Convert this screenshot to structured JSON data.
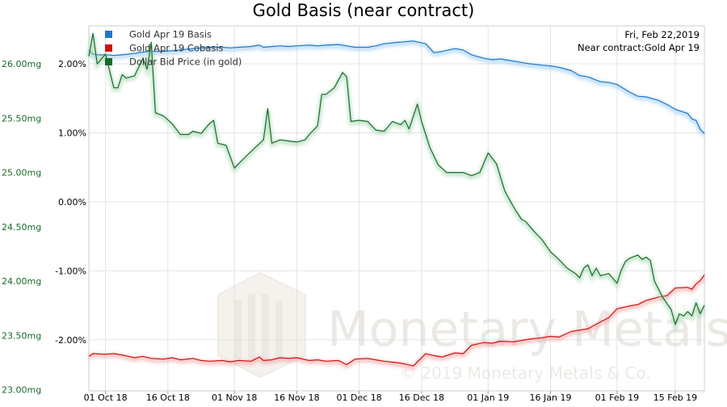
{
  "chart_data": {
    "type": "line",
    "title": "Gold Basis (near contract)",
    "info": {
      "date": "Fri, Feb 22,2019",
      "contract": "Near contract:Gold Apr 19"
    },
    "watermark": {
      "brand": "Monetary Metals",
      "registered": "®",
      "copyright": "© 2019 Monetary Metals & Co."
    },
    "legend": {
      "placement": "top-left",
      "entries": [
        {
          "name": "Gold Apr 19 Basis",
          "color": "#1f77c8"
        },
        {
          "name": "Gold Apr 19 Cobasis",
          "color": "#cc1111"
        },
        {
          "name": "Dollar Bid Price (in gold)",
          "color": "#1a6b2a"
        }
      ]
    },
    "x_ticks": [
      "01 Oct 18",
      "16 Oct 18",
      "01 Nov 18",
      "16 Nov 18",
      "01 Dec 18",
      "16 Dec 18",
      "01 Jan 19",
      "16 Jan 19",
      "01 Feb 19",
      "15 Feb 19"
    ],
    "x_range": [
      "2018-09-27",
      "2019-02-22"
    ],
    "y_left": {
      "ticks": [
        "23.00mg",
        "23.50mg",
        "24.00mg",
        "24.50mg",
        "25.00mg",
        "25.50mg",
        "26.00mg"
      ],
      "range": [
        22.99,
        26.35
      ],
      "color": "#1a6b2a"
    },
    "y_right": {
      "ticks": [
        "-2.00%",
        "-1.00%",
        "0.00%",
        "1.00%",
        "2.00%"
      ],
      "range": [
        -2.74,
        2.55
      ],
      "color": "#000000"
    },
    "grid": true,
    "series": [
      {
        "name": "Gold Apr 19 Basis",
        "axis": "right",
        "color": "#1f77c8",
        "points": [
          [
            "2018-09-27",
            2.2
          ],
          [
            "2018-09-28",
            2.14
          ],
          [
            "2018-09-29",
            2.13
          ],
          [
            "2018-10-01",
            2.13
          ],
          [
            "2018-10-03",
            2.12
          ],
          [
            "2018-10-05",
            2.13
          ],
          [
            "2018-10-08",
            2.15
          ],
          [
            "2018-10-10",
            2.17
          ],
          [
            "2018-10-12",
            2.18
          ],
          [
            "2018-10-15",
            2.18
          ],
          [
            "2018-10-17",
            2.19
          ],
          [
            "2018-10-19",
            2.2
          ],
          [
            "2018-10-22",
            2.22
          ],
          [
            "2018-10-24",
            2.23
          ],
          [
            "2018-10-26",
            2.24
          ],
          [
            "2018-10-29",
            2.24
          ],
          [
            "2018-10-31",
            2.23
          ],
          [
            "2018-11-02",
            2.24
          ],
          [
            "2018-11-05",
            2.25
          ],
          [
            "2018-11-07",
            2.27
          ],
          [
            "2018-11-08",
            2.24
          ],
          [
            "2018-11-10",
            2.25
          ],
          [
            "2018-11-12",
            2.26
          ],
          [
            "2018-11-14",
            2.25
          ],
          [
            "2018-11-16",
            2.26
          ],
          [
            "2018-11-19",
            2.27
          ],
          [
            "2018-11-21",
            2.26
          ],
          [
            "2018-11-23",
            2.27
          ],
          [
            "2018-11-26",
            2.28
          ],
          [
            "2018-11-28",
            2.26
          ],
          [
            "2018-11-30",
            2.24
          ],
          [
            "2018-12-03",
            2.24
          ],
          [
            "2018-12-05",
            2.26
          ],
          [
            "2018-12-07",
            2.29
          ],
          [
            "2018-12-10",
            2.31
          ],
          [
            "2018-12-12",
            2.32
          ],
          [
            "2018-12-14",
            2.33
          ],
          [
            "2018-12-17",
            2.29
          ],
          [
            "2018-12-19",
            2.16
          ],
          [
            "2018-12-21",
            2.18
          ],
          [
            "2018-12-24",
            2.22
          ],
          [
            "2018-12-26",
            2.2
          ],
          [
            "2018-12-28",
            2.13
          ],
          [
            "2018-12-31",
            2.08
          ],
          [
            "2019-01-02",
            2.06
          ],
          [
            "2019-01-04",
            2.07
          ],
          [
            "2019-01-07",
            2.04
          ],
          [
            "2019-01-09",
            2.02
          ],
          [
            "2019-01-11",
            2.0
          ],
          [
            "2019-01-14",
            1.98
          ],
          [
            "2019-01-16",
            1.97
          ],
          [
            "2019-01-18",
            1.95
          ],
          [
            "2019-01-21",
            1.9
          ],
          [
            "2019-01-23",
            1.83
          ],
          [
            "2019-01-25",
            1.81
          ],
          [
            "2019-01-28",
            1.74
          ],
          [
            "2019-01-30",
            1.73
          ],
          [
            "2019-02-01",
            1.7
          ],
          [
            "2019-02-04",
            1.59
          ],
          [
            "2019-02-06",
            1.53
          ],
          [
            "2019-02-08",
            1.52
          ],
          [
            "2019-02-11",
            1.47
          ],
          [
            "2019-02-13",
            1.41
          ],
          [
            "2019-02-15",
            1.34
          ],
          [
            "2019-02-18",
            1.28
          ],
          [
            "2019-02-19",
            1.2
          ],
          [
            "2019-02-20",
            1.18
          ],
          [
            "2019-02-21",
            1.05
          ],
          [
            "2019-02-22",
            0.99
          ]
        ]
      },
      {
        "name": "Gold Apr 19 Cobasis",
        "axis": "right",
        "color": "#cc1111",
        "points": [
          [
            "2018-09-27",
            -2.24
          ],
          [
            "2018-09-28",
            -2.2
          ],
          [
            "2018-10-01",
            -2.21
          ],
          [
            "2018-10-03",
            -2.2
          ],
          [
            "2018-10-05",
            -2.22
          ],
          [
            "2018-10-08",
            -2.26
          ],
          [
            "2018-10-10",
            -2.24
          ],
          [
            "2018-10-12",
            -2.27
          ],
          [
            "2018-10-15",
            -2.28
          ],
          [
            "2018-10-17",
            -2.26
          ],
          [
            "2018-10-19",
            -2.29
          ],
          [
            "2018-10-22",
            -2.27
          ],
          [
            "2018-10-24",
            -2.3
          ],
          [
            "2018-10-26",
            -2.31
          ],
          [
            "2018-10-29",
            -2.3
          ],
          [
            "2018-10-31",
            -2.32
          ],
          [
            "2018-11-02",
            -2.3
          ],
          [
            "2018-11-05",
            -2.31
          ],
          [
            "2018-11-07",
            -2.25
          ],
          [
            "2018-11-08",
            -2.3
          ],
          [
            "2018-11-10",
            -2.29
          ],
          [
            "2018-11-12",
            -2.26
          ],
          [
            "2018-11-14",
            -2.27
          ],
          [
            "2018-11-16",
            -2.26
          ],
          [
            "2018-11-19",
            -2.3
          ],
          [
            "2018-11-21",
            -2.29
          ],
          [
            "2018-11-23",
            -2.31
          ],
          [
            "2018-11-26",
            -2.3
          ],
          [
            "2018-11-28",
            -2.36
          ],
          [
            "2018-11-30",
            -2.28
          ],
          [
            "2018-12-03",
            -2.27
          ],
          [
            "2018-12-05",
            -2.29
          ],
          [
            "2018-12-07",
            -2.31
          ],
          [
            "2018-12-10",
            -2.33
          ],
          [
            "2018-12-12",
            -2.35
          ],
          [
            "2018-12-14",
            -2.38
          ],
          [
            "2018-12-17",
            -2.2
          ],
          [
            "2018-12-19",
            -2.23
          ],
          [
            "2018-12-21",
            -2.25
          ],
          [
            "2018-12-24",
            -2.19
          ],
          [
            "2018-12-26",
            -2.2
          ],
          [
            "2018-12-28",
            -2.08
          ],
          [
            "2018-12-31",
            -2.04
          ],
          [
            "2019-01-02",
            -2.05
          ],
          [
            "2019-01-04",
            -2.02
          ],
          [
            "2019-01-07",
            -2.03
          ],
          [
            "2019-01-09",
            -2.01
          ],
          [
            "2019-01-11",
            -1.99
          ],
          [
            "2019-01-14",
            -1.97
          ],
          [
            "2019-01-16",
            -1.95
          ],
          [
            "2019-01-18",
            -1.96
          ],
          [
            "2019-01-21",
            -1.88
          ],
          [
            "2019-01-23",
            -1.86
          ],
          [
            "2019-01-25",
            -1.84
          ],
          [
            "2019-01-28",
            -1.74
          ],
          [
            "2019-01-30",
            -1.68
          ],
          [
            "2019-02-01",
            -1.55
          ],
          [
            "2019-02-04",
            -1.51
          ],
          [
            "2019-02-06",
            -1.49
          ],
          [
            "2019-02-08",
            -1.43
          ],
          [
            "2019-02-11",
            -1.38
          ],
          [
            "2019-02-13",
            -1.36
          ],
          [
            "2019-02-15",
            -1.25
          ],
          [
            "2019-02-18",
            -1.24
          ],
          [
            "2019-02-19",
            -1.27
          ],
          [
            "2019-02-20",
            -1.19
          ],
          [
            "2019-02-21",
            -1.14
          ],
          [
            "2019-02-22",
            -1.06
          ]
        ]
      },
      {
        "name": "Dollar Bid Price (in gold)",
        "axis": "left",
        "color": "#1a6b2a",
        "points": [
          [
            "2018-09-27",
            26.07
          ],
          [
            "2018-09-28",
            26.28
          ],
          [
            "2018-09-29",
            26.0
          ],
          [
            "2018-10-01",
            26.09
          ],
          [
            "2018-10-03",
            25.78
          ],
          [
            "2018-10-04",
            25.78
          ],
          [
            "2018-10-05",
            25.9
          ],
          [
            "2018-10-06",
            25.87
          ],
          [
            "2018-10-08",
            25.89
          ],
          [
            "2018-10-10",
            26.05
          ],
          [
            "2018-10-11",
            25.95
          ],
          [
            "2018-10-12",
            26.2
          ],
          [
            "2018-10-13",
            25.55
          ],
          [
            "2018-10-15",
            25.52
          ],
          [
            "2018-10-17",
            25.45
          ],
          [
            "2018-10-19",
            25.35
          ],
          [
            "2018-10-21",
            25.35
          ],
          [
            "2018-10-22",
            25.38
          ],
          [
            "2018-10-24",
            25.36
          ],
          [
            "2018-10-26",
            25.45
          ],
          [
            "2018-10-27",
            25.48
          ],
          [
            "2018-10-28",
            25.27
          ],
          [
            "2018-10-30",
            25.25
          ],
          [
            "2018-11-01",
            25.04
          ],
          [
            "2018-11-03",
            25.12
          ],
          [
            "2018-11-06",
            25.23
          ],
          [
            "2018-11-08",
            25.3
          ],
          [
            "2018-11-09",
            25.59
          ],
          [
            "2018-11-10",
            25.27
          ],
          [
            "2018-11-12",
            25.3
          ],
          [
            "2018-11-14",
            25.29
          ],
          [
            "2018-11-16",
            25.28
          ],
          [
            "2018-11-18",
            25.3
          ],
          [
            "2018-11-19",
            25.35
          ],
          [
            "2018-11-21",
            25.43
          ],
          [
            "2018-11-22",
            25.72
          ],
          [
            "2018-11-23",
            25.72
          ],
          [
            "2018-11-25",
            25.78
          ],
          [
            "2018-11-27",
            25.92
          ],
          [
            "2018-11-28",
            25.88
          ],
          [
            "2018-11-29",
            25.47
          ],
          [
            "2018-12-01",
            25.48
          ],
          [
            "2018-12-03",
            25.47
          ],
          [
            "2018-12-05",
            25.39
          ],
          [
            "2018-12-07",
            25.38
          ],
          [
            "2018-12-09",
            25.47
          ],
          [
            "2018-12-11",
            25.44
          ],
          [
            "2018-12-12",
            25.48
          ],
          [
            "2018-12-13",
            25.4
          ],
          [
            "2018-12-15",
            25.63
          ],
          [
            "2018-12-16",
            25.47
          ],
          [
            "2018-12-18",
            25.23
          ],
          [
            "2018-12-20",
            25.07
          ],
          [
            "2018-12-22",
            25.0
          ],
          [
            "2018-12-24",
            25.0
          ],
          [
            "2018-12-26",
            25.0
          ],
          [
            "2018-12-28",
            24.97
          ],
          [
            "2018-12-30",
            25.0
          ],
          [
            "2019-01-01",
            25.18
          ],
          [
            "2019-01-03",
            25.08
          ],
          [
            "2019-01-05",
            24.83
          ],
          [
            "2019-01-07",
            24.69
          ],
          [
            "2019-01-09",
            24.57
          ],
          [
            "2019-01-10",
            24.55
          ],
          [
            "2019-01-12",
            24.46
          ],
          [
            "2019-01-14",
            24.38
          ],
          [
            "2019-01-16",
            24.27
          ],
          [
            "2019-01-18",
            24.2
          ],
          [
            "2019-01-20",
            24.12
          ],
          [
            "2019-01-22",
            24.07
          ],
          [
            "2019-01-23",
            24.03
          ],
          [
            "2019-01-24",
            24.12
          ],
          [
            "2019-01-25",
            24.15
          ],
          [
            "2019-01-26",
            24.05
          ],
          [
            "2019-01-27",
            24.12
          ],
          [
            "2019-01-28",
            24.05
          ],
          [
            "2019-01-30",
            24.07
          ],
          [
            "2019-02-01",
            23.98
          ],
          [
            "2019-02-02",
            24.1
          ],
          [
            "2019-02-03",
            24.18
          ],
          [
            "2019-02-04",
            24.21
          ],
          [
            "2019-02-06",
            24.24
          ],
          [
            "2019-02-07",
            24.2
          ],
          [
            "2019-02-08",
            24.22
          ],
          [
            "2019-02-09",
            24.19
          ],
          [
            "2019-02-10",
            24.0
          ],
          [
            "2019-02-12",
            23.85
          ],
          [
            "2019-02-14",
            23.74
          ],
          [
            "2019-02-15",
            23.6
          ],
          [
            "2019-02-16",
            23.7
          ],
          [
            "2019-02-17",
            23.68
          ],
          [
            "2019-02-18",
            23.72
          ],
          [
            "2019-02-19",
            23.68
          ],
          [
            "2019-02-20",
            23.8
          ],
          [
            "2019-02-21",
            23.7
          ],
          [
            "2019-02-22",
            23.78
          ]
        ]
      }
    ]
  }
}
